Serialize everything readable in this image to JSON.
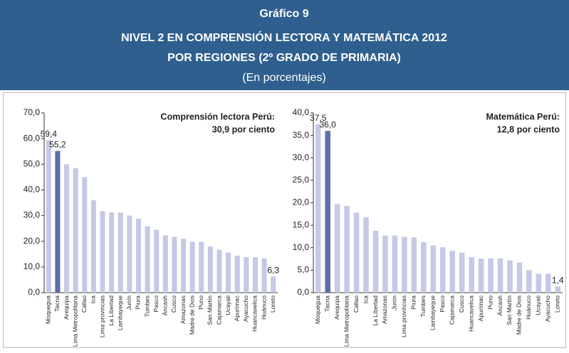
{
  "header": {
    "title": "Gráfico 9",
    "subtitle1": "NIVEL 2 EN COMPRENSIÓN LECTORA Y MATEMÁTICA 2012",
    "subtitle2": "POR REGIONES (2º GRADO DE PRIMARIA)",
    "note": "(En porcentajes)"
  },
  "chart_data": [
    {
      "type": "bar",
      "annotation": [
        "Comprensión lectora Perú:",
        "30,9 por ciento"
      ],
      "categories": [
        "Moquegua",
        "Tacna",
        "Arequipa",
        "Lima Metropolitana",
        "Callao",
        "Ica",
        "Lima provincias",
        "La Libertad",
        "Lambayeque",
        "Junín",
        "Piura",
        "Tumbes",
        "Pasco",
        "Áncash",
        "Cusco",
        "Amazonas",
        "Madre de Dios",
        "Puno",
        "San Martín",
        "Cajamarca",
        "Ucayali",
        "Apurímac",
        "Ayacucho",
        "Huancavelica",
        "Huánuco",
        "Loreto"
      ],
      "values": [
        59.4,
        55.2,
        50.0,
        48.5,
        45.0,
        36.0,
        31.8,
        31.3,
        31.2,
        30.0,
        28.8,
        25.8,
        24.5,
        22.3,
        21.7,
        21.0,
        19.8,
        19.8,
        18.0,
        16.7,
        15.6,
        14.4,
        13.8,
        13.8,
        13.3,
        6.3
      ],
      "value_labels": [
        "59,4",
        "55,2",
        null,
        null,
        null,
        null,
        null,
        null,
        null,
        null,
        null,
        null,
        null,
        null,
        null,
        null,
        null,
        null,
        null,
        null,
        null,
        null,
        null,
        null,
        null,
        "6,3"
      ],
      "colors": [
        "#c5c9e6",
        "#5b6fa8",
        "#c5c9e6",
        "#c5c9e6",
        "#c5c9e6",
        "#c5c9e6",
        "#c5c9e6",
        "#c5c9e6",
        "#c5c9e6",
        "#c5c9e6",
        "#c5c9e6",
        "#c5c9e6",
        "#c5c9e6",
        "#c5c9e6",
        "#c5c9e6",
        "#c5c9e6",
        "#c5c9e6",
        "#c5c9e6",
        "#c5c9e6",
        "#c5c9e6",
        "#c5c9e6",
        "#c5c9e6",
        "#c5c9e6",
        "#c5c9e6",
        "#c5c9e6",
        "#c5c9e6"
      ],
      "ylim": [
        0,
        70
      ],
      "yticks": [
        {
          "value": 0,
          "label": "0,0"
        },
        {
          "value": 10,
          "label": "10,0"
        },
        {
          "value": 20,
          "label": "20,0"
        },
        {
          "value": 30,
          "label": "30,0"
        },
        {
          "value": 40,
          "label": "40,0"
        },
        {
          "value": 50,
          "label": "50,0"
        },
        {
          "value": 60,
          "label": "60,0"
        },
        {
          "value": 70,
          "label": "70,0"
        }
      ]
    },
    {
      "type": "bar",
      "annotation": [
        "Matemática Perú:",
        "12,8 por ciento"
      ],
      "categories": [
        "Moquegua",
        "Tacna",
        "Arequipa",
        "Lima Metropolitana",
        "Callao",
        "Ica",
        "La Libertad",
        "Amazonas",
        "Junín",
        "Lima provincias",
        "Piura",
        "Tumbes",
        "Lambayeque",
        "Pasco",
        "Cajamarca",
        "Cusco",
        "Huancavelica",
        "Apurímac",
        "Puno",
        "Áncash",
        "San Martín",
        "Madre de Dios",
        "Huánuco",
        "Ucayali",
        "Ayacucho",
        "Loreto"
      ],
      "values": [
        37.5,
        36.0,
        19.7,
        19.3,
        17.8,
        16.8,
        13.8,
        12.7,
        12.7,
        12.4,
        12.3,
        11.2,
        10.5,
        10.1,
        9.3,
        8.9,
        7.9,
        7.6,
        7.6,
        7.6,
        7.2,
        6.7,
        5.0,
        4.2,
        4.2,
        1.4
      ],
      "value_labels": [
        "37,5",
        "36,0",
        null,
        null,
        null,
        null,
        null,
        null,
        null,
        null,
        null,
        null,
        null,
        null,
        null,
        null,
        null,
        null,
        null,
        null,
        null,
        null,
        null,
        null,
        null,
        "1,4"
      ],
      "colors": [
        "#c5c9e6",
        "#5b6fa8",
        "#c5c9e6",
        "#c5c9e6",
        "#c5c9e6",
        "#c5c9e6",
        "#c5c9e6",
        "#c5c9e6",
        "#c5c9e6",
        "#c5c9e6",
        "#c5c9e6",
        "#c5c9e6",
        "#c5c9e6",
        "#c5c9e6",
        "#c5c9e6",
        "#c5c9e6",
        "#c5c9e6",
        "#c5c9e6",
        "#c5c9e6",
        "#c5c9e6",
        "#c5c9e6",
        "#c5c9e6",
        "#c5c9e6",
        "#c5c9e6",
        "#c5c9e6",
        "#c5c9e6"
      ],
      "ylim": [
        0,
        40
      ],
      "yticks": [
        {
          "value": 0,
          "label": "0,0"
        },
        {
          "value": 5,
          "label": "5,0"
        },
        {
          "value": 10,
          "label": "10,0"
        },
        {
          "value": 15,
          "label": "15,0"
        },
        {
          "value": 20,
          "label": "20,0"
        },
        {
          "value": 25,
          "label": "25,0"
        },
        {
          "value": 30,
          "label": "30,0"
        },
        {
          "value": 35,
          "label": "35,0"
        },
        {
          "value": 40,
          "label": "40,0"
        }
      ]
    }
  ]
}
